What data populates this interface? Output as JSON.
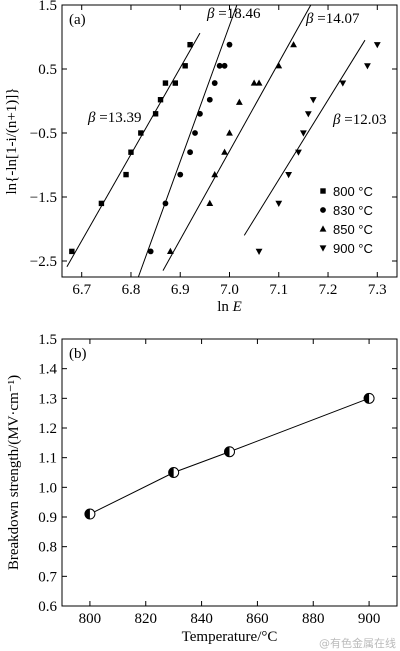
{
  "chart_data": [
    {
      "type": "scatter",
      "panel_label": "(a)",
      "xlabel": "ln E",
      "ylabel": "ln{-ln[1-i/(n+1)]}",
      "xlim": [
        6.66,
        7.34
      ],
      "ylim": [
        -2.75,
        1.5
      ],
      "xticks": [
        "6.7",
        "6.8",
        "6.9",
        "7.0",
        "7.1",
        "7.2",
        "7.3"
      ],
      "yticks": [
        "1.5",
        "0.5",
        "-0.5",
        "-1.5",
        "-2.5"
      ],
      "series": [
        {
          "name": "800 °C",
          "marker": "square",
          "beta_label": "β =13.39",
          "fit": [
            [
              6.67,
              -2.59
            ],
            [
              6.94,
              1.06
            ]
          ],
          "x": [
            6.68,
            6.74,
            6.79,
            6.8,
            6.82,
            6.85,
            6.86,
            6.87,
            6.89,
            6.91,
            6.92
          ],
          "y": [
            -2.35,
            -1.6,
            -1.15,
            -0.8,
            -0.5,
            -0.2,
            0.02,
            0.28,
            0.28,
            0.55,
            0.88
          ]
        },
        {
          "name": "830 °C",
          "marker": "circle",
          "beta_label": "β =18.46",
          "fit": [
            [
              6.815,
              -2.75
            ],
            [
              7.015,
              1.5
            ]
          ],
          "x": [
            6.84,
            6.87,
            6.9,
            6.92,
            6.93,
            6.94,
            6.96,
            6.97,
            6.98,
            6.99,
            7.0
          ],
          "y": [
            -2.35,
            -1.6,
            -1.15,
            -0.8,
            -0.5,
            -0.2,
            0.02,
            0.28,
            0.55,
            0.55,
            0.88
          ]
        },
        {
          "name": "850 °C",
          "marker": "triangle-up",
          "beta_label": "β =14.07",
          "fit": [
            [
              6.865,
              -2.65
            ],
            [
              7.165,
              1.5
            ]
          ],
          "x": [
            6.88,
            6.96,
            6.97,
            6.99,
            7.0,
            7.02,
            7.05,
            7.06,
            7.1,
            7.13
          ],
          "y": [
            -2.35,
            -1.6,
            -1.15,
            -0.8,
            -0.5,
            -0.02,
            0.28,
            0.28,
            0.55,
            0.88
          ]
        },
        {
          "name": "900 °C",
          "marker": "triangle-down",
          "beta_label": "β =12.03",
          "fit": [
            [
              7.03,
              -2.1
            ],
            [
              7.275,
              0.95
            ]
          ],
          "x": [
            7.06,
            7.1,
            7.12,
            7.14,
            7.15,
            7.16,
            7.17,
            7.23,
            7.28,
            7.3
          ],
          "y": [
            -2.35,
            -1.6,
            -1.15,
            -0.8,
            -0.5,
            -0.2,
            0.02,
            0.28,
            0.55,
            0.88
          ]
        }
      ]
    },
    {
      "type": "line",
      "panel_label": "(b)",
      "xlabel": "Temperature/°C",
      "ylabel": "Breakdown strength/(MV·cm⁻¹)",
      "xlim": [
        790,
        910
      ],
      "ylim": [
        0.6,
        1.5
      ],
      "xticks": [
        "800",
        "820",
        "840",
        "860",
        "880",
        "900"
      ],
      "yticks": [
        "0.6",
        "0.7",
        "0.8",
        "0.9",
        "1.0",
        "1.1",
        "1.2",
        "1.3",
        "1.4",
        "1.5"
      ],
      "x": [
        800,
        830,
        850,
        900
      ],
      "y": [
        0.91,
        1.05,
        1.12,
        1.3
      ]
    }
  ],
  "watermark": "@有色金属在线"
}
